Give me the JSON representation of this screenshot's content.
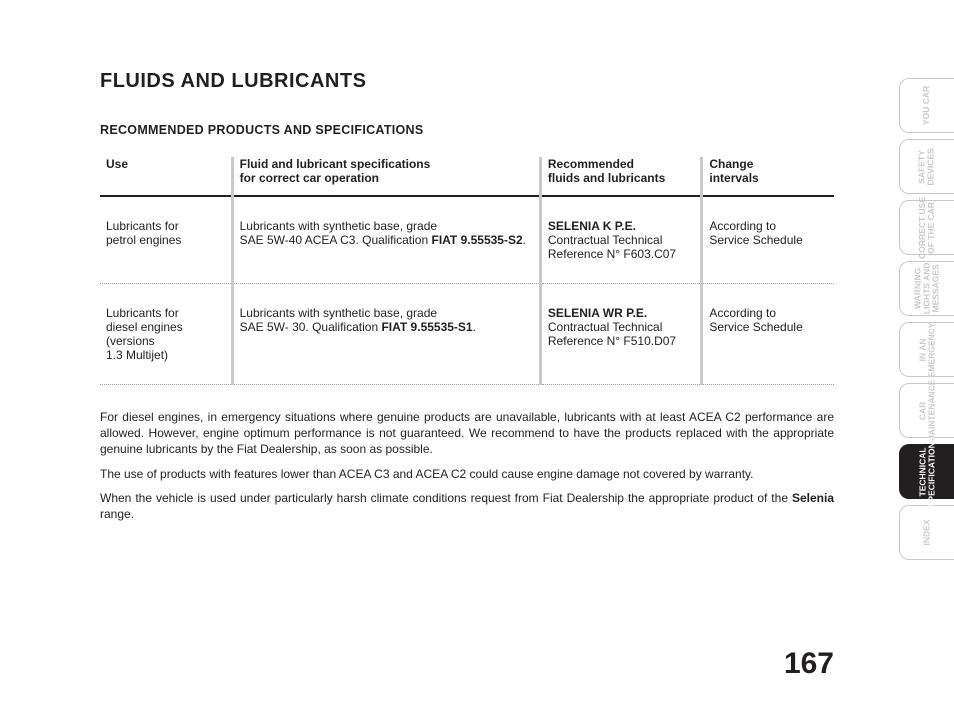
{
  "title": "FLUIDS AND LUBRICANTS",
  "subtitle": "RECOMMENDED PRODUCTS AND SPECIFICATIONS",
  "table": {
    "headers": {
      "use": "Use",
      "spec_l1": "Fluid and lubricant specifications",
      "spec_l2": "for correct car operation",
      "rec_l1": "Recommended",
      "rec_l2": "fluids and lubricants",
      "chg_l1": "Change",
      "chg_l2": "intervals"
    },
    "rows": [
      {
        "use_l1": "Lubricants for",
        "use_l2": "petrol engines",
        "spec_l1": "Lubricants with synthetic base, grade",
        "spec_l2a": "SAE 5W-40 ACEA C3. Qualification ",
        "spec_l2b": "FIAT 9.55535-S2",
        "spec_l2c": ".",
        "rec_l1": "SELENIA K P.E.",
        "rec_l2": "Contractual Technical",
        "rec_l3": "Reference N° F603.C07",
        "chg_l1": "According to",
        "chg_l2": "Service Schedule"
      },
      {
        "use_l1": "Lubricants for",
        "use_l2": "diesel engines",
        "use_l3": "(versions",
        "use_l4": "1.3 Multijet)",
        "spec_l1": "Lubricants with synthetic base, grade",
        "spec_l2a": "SAE 5W- 30. Qualification ",
        "spec_l2b": "FIAT 9.55535-S1",
        "spec_l2c": ".",
        "rec_l1": "SELENIA WR P.E.",
        "rec_l2": "Contractual Technical",
        "rec_l3": "Reference N° F510.D07",
        "chg_l1": "According to",
        "chg_l2": "Service Schedule"
      }
    ]
  },
  "notes": {
    "p1": "For diesel engines, in emergency situations where genuine products are unavailable, lubricants with at least ACEA C2 performance are allowed. However, engine optimum performance is not guaranteed. We recommend to have the products replaced with the appropriate genuine lubricants by the Fiat Dealership, as soon as possible.",
    "p2": "The use of products with features lower than ACEA C3 and ACEA C2 could cause engine damage not covered by warranty.",
    "p3a": "When the vehicle is used under particularly harsh climate conditions request from Fiat Dealership the appropriate product of the ",
    "p3b": "Se­lenia",
    "p3c": " range."
  },
  "page_number": "167",
  "tabs": [
    {
      "label": "YOU CAR",
      "active": false
    },
    {
      "label": "SAFETY\nDEVICES",
      "active": false
    },
    {
      "label": "CORRECT USE\nOF THE CAR",
      "active": false
    },
    {
      "label": "WARNING\nLIGHTS AND\nMESSAGES",
      "active": false
    },
    {
      "label": "IN AN\nEMERGENCY",
      "active": false
    },
    {
      "label": "CAR\nMAINTENANCE",
      "active": false
    },
    {
      "label": "TECHNICAL\nSPECIFICATIONS",
      "active": true
    },
    {
      "label": "INDEX",
      "active": false
    }
  ],
  "colors": {
    "text": "#231f20",
    "divider": "#c9c9c9",
    "tab_inactive_text": "#c9c9c9",
    "tab_active_bg": "#231f20",
    "tab_active_text": "#ffffff",
    "background": "#ffffff"
  }
}
